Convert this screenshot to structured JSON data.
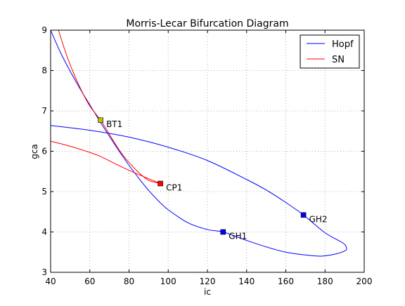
{
  "chart_data": {
    "type": "line",
    "title": "Morris-Lecar Bifurcation Diagram",
    "xlabel": "ic",
    "ylabel": "gca",
    "xlim": [
      40,
      200
    ],
    "ylim": [
      3,
      9
    ],
    "xticks": [
      40,
      60,
      80,
      100,
      120,
      140,
      160,
      180,
      200
    ],
    "yticks": [
      3,
      4,
      5,
      6,
      7,
      8,
      9
    ],
    "grid": true,
    "legend_position": "top-right",
    "series": [
      {
        "name": "Hopf",
        "color": "#0000ff",
        "segments": [
          [
            [
              40,
              9.0
            ],
            [
              45,
              8.45
            ],
            [
              50,
              7.98
            ],
            [
              55,
              7.55
            ],
            [
              60,
              7.15
            ],
            [
              65,
              6.75
            ],
            [
              70,
              6.37
            ],
            [
              75,
              6.0
            ],
            [
              80,
              5.65
            ],
            [
              85,
              5.33
            ],
            [
              90,
              5.03
            ],
            [
              95,
              4.77
            ],
            [
              100,
              4.55
            ],
            [
              110,
              4.23
            ],
            [
              120,
              4.06
            ],
            [
              128,
              4.0
            ],
            [
              140,
              3.79
            ],
            [
              150,
              3.63
            ],
            [
              160,
              3.5
            ],
            [
              170,
              3.43
            ],
            [
              178,
              3.4
            ],
            [
              185,
              3.45
            ],
            [
              190,
              3.53
            ],
            [
              191,
              3.6
            ],
            [
              189,
              3.73
            ],
            [
              180,
              3.98
            ],
            [
              169,
              4.42
            ],
            [
              160,
              4.73
            ],
            [
              150,
              5.04
            ],
            [
              140,
              5.3
            ],
            [
              120,
              5.77
            ],
            [
              100,
              6.1
            ],
            [
              80,
              6.35
            ],
            [
              60,
              6.52
            ],
            [
              40,
              6.64
            ]
          ]
        ]
      },
      {
        "name": "SN",
        "color": "#ff0000",
        "segments": [
          [
            [
              44,
              9.0
            ],
            [
              48,
              8.4
            ],
            [
              52,
              7.9
            ],
            [
              56,
              7.48
            ],
            [
              60,
              7.12
            ],
            [
              65.5,
              6.77
            ],
            [
              70,
              6.42
            ],
            [
              75,
              6.03
            ],
            [
              80,
              5.72
            ],
            [
              85,
              5.47
            ],
            [
              90,
              5.28
            ],
            [
              96,
              5.2
            ]
          ],
          [
            [
              96,
              5.2
            ],
            [
              85,
              5.42
            ],
            [
              75,
              5.64
            ],
            [
              65,
              5.88
            ],
            [
              55,
              6.05
            ],
            [
              48,
              6.15
            ],
            [
              40,
              6.25
            ]
          ]
        ]
      }
    ],
    "points": [
      {
        "label": "BT1",
        "x": 65.5,
        "y": 6.77,
        "color": "#bfbf00"
      },
      {
        "label": "CP1",
        "x": 96,
        "y": 5.2,
        "color": "#ff0000"
      },
      {
        "label": "GH1",
        "x": 128,
        "y": 4.0,
        "color": "#0000ff"
      },
      {
        "label": "GH2",
        "x": 169,
        "y": 4.42,
        "color": "#0000ff"
      }
    ]
  }
}
